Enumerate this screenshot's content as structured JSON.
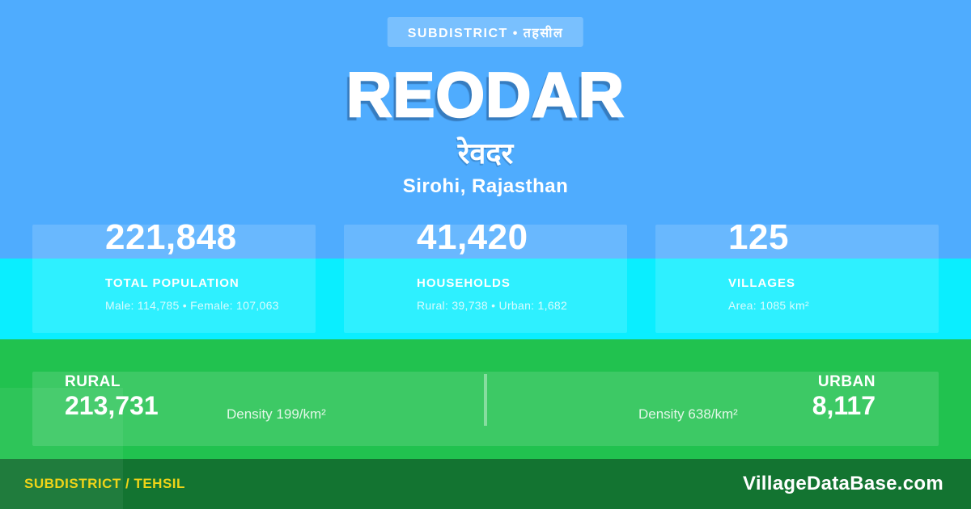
{
  "badge": {
    "label": "SUBDISTRICT • तहसील"
  },
  "header": {
    "title": "REODAR",
    "native_name": "रेवदर",
    "location": "Sirohi, Rajasthan"
  },
  "stats": [
    {
      "value": "221,848",
      "label": "TOTAL POPULATION",
      "detail": "Male: 114,785 • Female: 107,063"
    },
    {
      "value": "41,420",
      "label": "HOUSEHOLDS",
      "detail": "Rural: 39,738 • Urban: 1,682"
    },
    {
      "value": "125",
      "label": "VILLAGES",
      "detail": "Area: 1085 km²"
    }
  ],
  "split": {
    "rural": {
      "label": "RURAL",
      "value": "213,731",
      "density": "Density 199/km²"
    },
    "urban": {
      "label": "URBAN",
      "value": "8,117",
      "density": "Density 638/km²"
    }
  },
  "footer": {
    "left": "SUBDISTRICT / TEHSIL",
    "right": "VillageDataBase.com"
  },
  "colors": {
    "background_blue": "#4facfe",
    "band_cyan": "#0aeeff",
    "band_green": "#21c24f",
    "footer_green": "#137431",
    "accent_yellow": "#f0d418",
    "text_white": "#ffffff"
  }
}
